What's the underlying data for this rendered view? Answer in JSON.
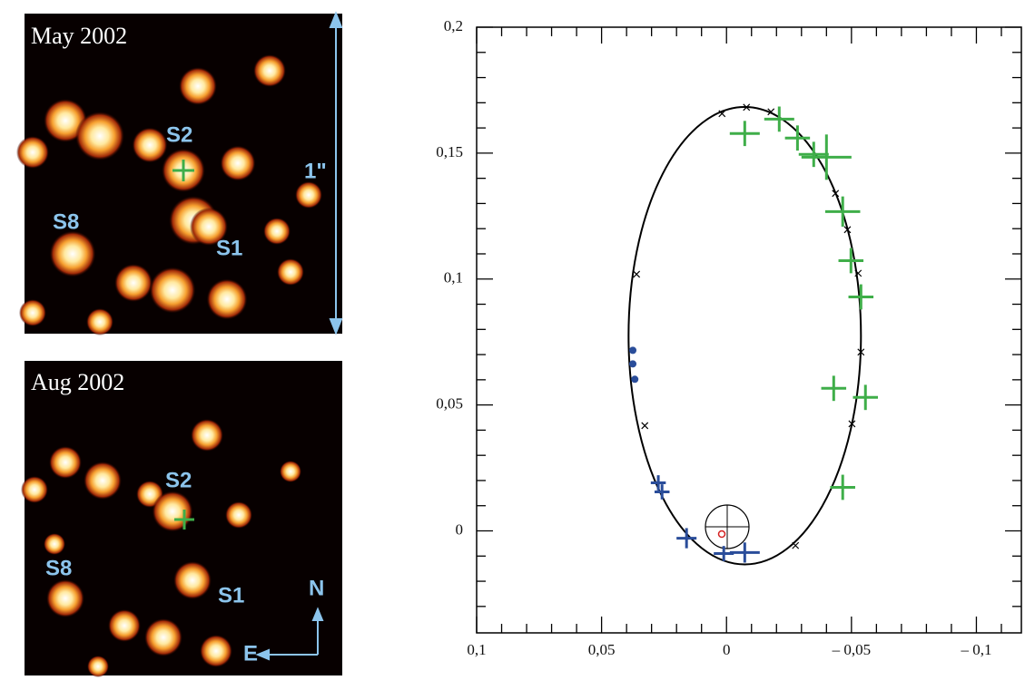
{
  "panels": [
    {
      "title": "May 2002",
      "labels": [
        "S2",
        "S1",
        "S8",
        "1\""
      ]
    },
    {
      "title": "Aug 2002",
      "labels": [
        "S2",
        "S1",
        "S8",
        "N",
        "E"
      ]
    }
  ],
  "chart_data": {
    "type": "scatter",
    "xlim": [
      0.1,
      -0.118
    ],
    "ylim": [
      -0.0405,
      0.2
    ],
    "xticks": [
      {
        "value": 0.1,
        "label": "0,1"
      },
      {
        "value": 0.05,
        "label": "0,05"
      },
      0,
      {
        "value": -0.05,
        "label": "– 0,05"
      },
      {
        "value": -0.1,
        "label": "– 0,1"
      }
    ],
    "yticks": [
      0,
      {
        "value": 0.05,
        "label": "0,05"
      },
      {
        "value": 0.1,
        "label": "0,1"
      },
      {
        "value": 0.15,
        "label": "0,15"
      },
      {
        "value": 0.2,
        "label": "0,2"
      }
    ],
    "x_minor_ticks": [
      0.09,
      0.08,
      0.07,
      0.06,
      0.04,
      0.03,
      0.02,
      0.01,
      -0.01,
      -0.02,
      -0.03,
      -0.04,
      -0.06,
      -0.07,
      -0.08,
      -0.09,
      -0.11
    ],
    "y_minor_ticks": [
      -0.03,
      -0.02,
      -0.01,
      0.01,
      0.02,
      0.03,
      0.04,
      0.06,
      0.07,
      0.08,
      0.09,
      0.11,
      0.12,
      0.13,
      0.14,
      0.16,
      0.17,
      0.18,
      0.19
    ],
    "orbit": {
      "cx": -0.0073,
      "cy": 0.0775,
      "rx": 0.0465,
      "ry": 0.0908,
      "color": "#000000"
    },
    "series": [
      {
        "marker": "errorcross",
        "color": "#3fae49",
        "x": [
          -0.0073,
          -0.0211,
          -0.0284,
          -0.0349,
          -0.04,
          -0.0465,
          -0.0498,
          -0.0538,
          -0.0429,
          -0.0556,
          -0.0465
        ],
        "y": [
          0.1578,
          0.1635,
          0.156,
          0.1495,
          0.1484,
          0.1268,
          0.1073,
          0.0929,
          0.0566,
          0.053,
          0.0173
        ],
        "x_err": [
          0.006,
          0.006,
          0.005,
          0.006,
          0.01,
          0.007,
          0.005,
          0.005,
          0.005,
          0.005,
          0.005
        ],
        "y_err": [
          0.005,
          0.005,
          0.005,
          0.005,
          0.009,
          0.006,
          0.005,
          0.005,
          0.005,
          0.005,
          0.005
        ]
      },
      {
        "marker": "errorcross",
        "color": "#2a4d9a",
        "x": [
          0.0273,
          0.0258,
          0.016,
          0.0011,
          -0.0073
        ],
        "y": [
          0.0191,
          0.0155,
          -0.0029,
          -0.009,
          -0.0086
        ],
        "x_err": [
          0.003,
          0.003,
          0.004,
          0.004,
          0.006
        ],
        "y_err": [
          0.003,
          0.003,
          0.004,
          0.003,
          0.004
        ]
      },
      {
        "marker": "dot",
        "color": "#2a4d9a",
        "x": [
          0.0375,
          0.0375,
          0.0367
        ],
        "y": [
          0.0717,
          0.0663,
          0.0602
        ]
      },
      {
        "marker": "x",
        "color": "#000000",
        "x": [
          0.0018,
          -0.008,
          -0.0178,
          -0.0436,
          -0.0484,
          -0.0527,
          -0.0538,
          -0.0502,
          -0.0276,
          0.0327,
          0.036
        ],
        "y": [
          0.1657,
          0.1682,
          0.1664,
          0.134,
          0.1196,
          0.1023,
          0.071,
          0.0425,
          -0.0058,
          0.0418,
          0.1019
        ]
      }
    ]
  }
}
